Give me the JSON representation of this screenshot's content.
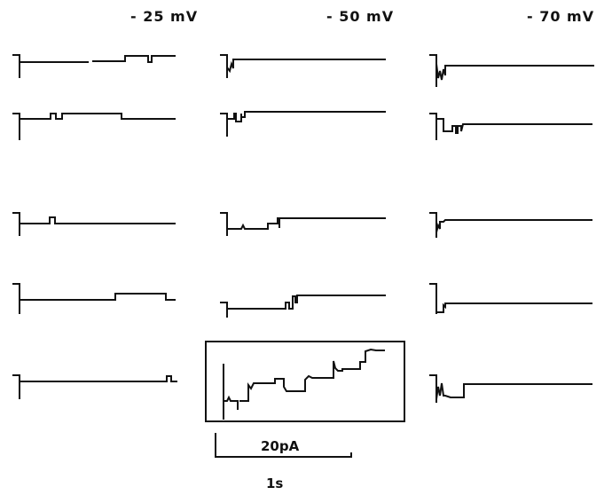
{
  "figure": {
    "columns": [
      {
        "voltage_label": "- 25 mV",
        "traces": 5
      },
      {
        "voltage_label": "- 50 mV",
        "traces": 4,
        "boxed_inset": true
      },
      {
        "voltage_label": "- 70 mV",
        "traces": 5
      }
    ],
    "scale_bar": {
      "current_label": "20pA",
      "time_label": "1s"
    }
  }
}
